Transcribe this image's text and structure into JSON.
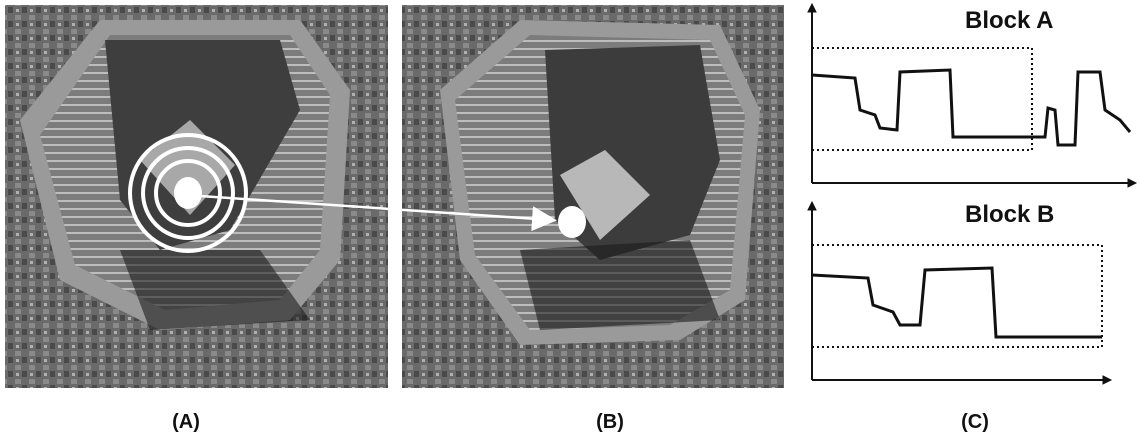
{
  "panels": [
    {
      "label": "(A)"
    },
    {
      "label": "(B)"
    },
    {
      "label": "(C)"
    }
  ],
  "plots": [
    {
      "title": "Block A"
    },
    {
      "title": "Block B"
    }
  ]
}
